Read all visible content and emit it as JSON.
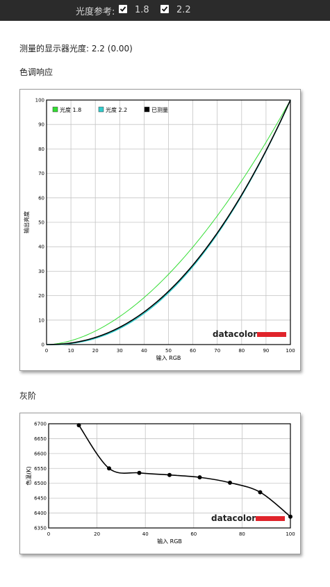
{
  "header": {
    "label": "光度参考:",
    "options": [
      {
        "label": "1.8",
        "checked": true
      },
      {
        "label": "2.2",
        "checked": true
      }
    ]
  },
  "measured_text": "测量的显示器光度:  2.2 (0.00)",
  "tone_section_title": "色调响应",
  "gray_section_title": "灰阶",
  "brand": "datacolor",
  "brand_color": "#e0242b",
  "chart_data": [
    {
      "type": "line",
      "xlabel": "输入 RGB",
      "ylabel": "输出亮度",
      "xlim": [
        0,
        100
      ],
      "ylim": [
        0,
        100
      ],
      "xticks": [
        0,
        10,
        20,
        30,
        40,
        50,
        60,
        70,
        80,
        90,
        100
      ],
      "yticks": [
        0,
        10,
        20,
        30,
        40,
        50,
        60,
        70,
        80,
        90,
        100
      ],
      "grid": true,
      "legend_position": "top-left",
      "series": [
        {
          "name": "光度 1.8",
          "color": "#33dd33",
          "gamma": 1.8
        },
        {
          "name": "光度 2.2",
          "color": "#33cccc",
          "gamma": 2.2
        },
        {
          "name": "已测量",
          "color": "#000000",
          "gamma": 2.2
        }
      ]
    },
    {
      "type": "line",
      "xlabel": "输入 RGB",
      "ylabel": "色温(K)",
      "xlim": [
        0,
        100
      ],
      "ylim": [
        6350,
        6700
      ],
      "xticks": [
        0,
        20,
        40,
        60,
        80,
        100
      ],
      "yticks": [
        6350,
        6400,
        6450,
        6500,
        6550,
        6600,
        6650,
        6700
      ],
      "grid": true,
      "series": [
        {
          "name": "",
          "color": "#000000",
          "x": [
            12.5,
            25,
            37.5,
            50,
            62.5,
            75,
            87.5,
            100
          ],
          "y": [
            6695,
            6550,
            6535,
            6528,
            6520,
            6502,
            6470,
            6388
          ]
        }
      ]
    }
  ]
}
